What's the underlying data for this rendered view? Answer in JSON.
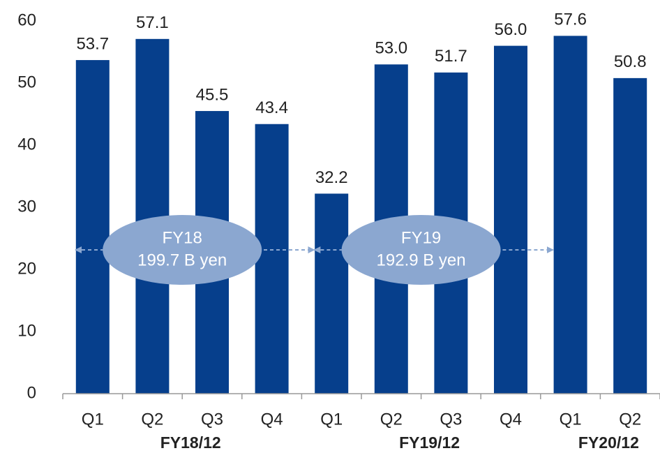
{
  "chart_data": {
    "type": "bar",
    "categories": [
      "Q1",
      "Q2",
      "Q3",
      "Q4",
      "Q1",
      "Q2",
      "Q3",
      "Q4",
      "Q1",
      "Q2"
    ],
    "values": [
      53.7,
      57.1,
      45.5,
      43.4,
      32.2,
      53.0,
      51.7,
      56.0,
      57.6,
      50.8
    ],
    "value_labels": [
      "53.7",
      "57.1",
      "45.5",
      "43.4",
      "32.2",
      "53.0",
      "51.7",
      "56.0",
      "57.6",
      "50.8"
    ],
    "color": "#063f8c",
    "ylim": [
      0,
      60
    ],
    "yticks": [
      0,
      10,
      20,
      30,
      40,
      50,
      60
    ],
    "groups": [
      {
        "label": "FY18/12",
        "size": 4
      },
      {
        "label": "FY19/12",
        "size": 4
      },
      {
        "label": "FY20/12",
        "size": 2
      }
    ],
    "annotations": [
      {
        "lines": [
          "FY18",
          "199.7 B yen"
        ]
      },
      {
        "lines": [
          "FY19",
          "192.9 B yen"
        ]
      }
    ],
    "annotation_color": "#8ba7d0"
  }
}
